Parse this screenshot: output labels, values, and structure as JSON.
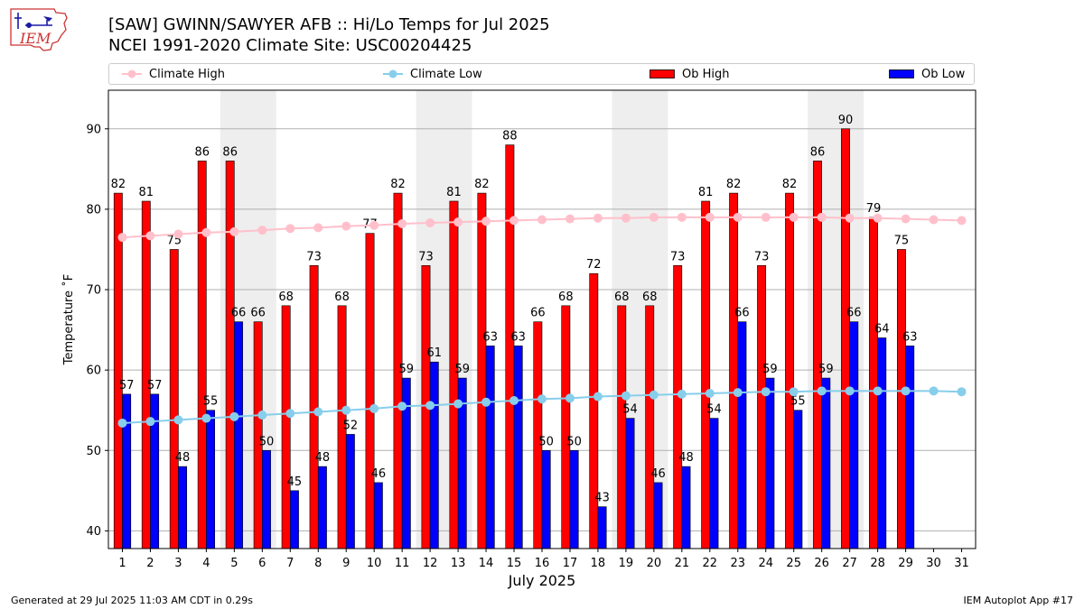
{
  "header": {
    "logo_text": "IEM",
    "title_line1": "[SAW] GWINN/SAWYER AFB :: Hi/Lo Temps for Jul 2025",
    "title_line2": "NCEI 1991-2020 Climate Site: USC00204425"
  },
  "legend": {
    "climate_high": "Climate High",
    "climate_low": "Climate Low",
    "ob_high": "Ob High",
    "ob_low": "Ob Low"
  },
  "footer": {
    "generated": "Generated at 29 Jul 2025 11:03 AM CDT in 0.29s",
    "app": "IEM Autoplot App #17"
  },
  "colors": {
    "ob_high": "#ff0000",
    "ob_low": "#0000ff",
    "climate_high": "#ffc0cb",
    "climate_low": "#87ceeb",
    "weekend_band": "#eeeeee",
    "grid": "#b0b0b0"
  },
  "chart_data": {
    "type": "bar",
    "xlabel": "July 2025",
    "ylabel": "Temperature ˚F",
    "ylim": [
      37.8,
      94.8
    ],
    "yticks": [
      40,
      50,
      60,
      70,
      80,
      90
    ],
    "grid": "horizontal",
    "legend_position": "top",
    "categories": [
      "1",
      "2",
      "3",
      "4",
      "5",
      "6",
      "7",
      "8",
      "9",
      "10",
      "11",
      "12",
      "13",
      "14",
      "15",
      "16",
      "17",
      "18",
      "19",
      "20",
      "21",
      "22",
      "23",
      "24",
      "25",
      "26",
      "27",
      "28",
      "29",
      "30",
      "31"
    ],
    "shaded_days": [
      [
        5,
        6
      ],
      [
        12,
        13
      ],
      [
        19,
        20
      ],
      [
        26,
        27
      ]
    ],
    "series": [
      {
        "name": "Ob High",
        "kind": "bar",
        "values": [
          82,
          81,
          75,
          86,
          86,
          66,
          68,
          73,
          68,
          77,
          82,
          73,
          81,
          82,
          88,
          66,
          68,
          72,
          68,
          68,
          73,
          81,
          82,
          73,
          82,
          86,
          90,
          79,
          75,
          null,
          null
        ]
      },
      {
        "name": "Ob Low",
        "kind": "bar",
        "values": [
          57,
          57,
          48,
          55,
          66,
          50,
          45,
          48,
          52,
          46,
          59,
          61,
          59,
          63,
          63,
          50,
          50,
          43,
          54,
          46,
          48,
          54,
          66,
          59,
          55,
          59,
          66,
          64,
          63,
          null,
          null
        ]
      },
      {
        "name": "Climate High",
        "kind": "line",
        "values": [
          76.5,
          76.7,
          76.9,
          77.1,
          77.2,
          77.4,
          77.6,
          77.7,
          77.9,
          78.0,
          78.2,
          78.3,
          78.4,
          78.5,
          78.6,
          78.7,
          78.8,
          78.9,
          78.9,
          79.0,
          79.0,
          79.0,
          79.0,
          79.0,
          79.0,
          79.0,
          78.9,
          78.9,
          78.8,
          78.7,
          78.6
        ]
      },
      {
        "name": "Climate Low",
        "kind": "line",
        "values": [
          53.4,
          53.6,
          53.8,
          54.0,
          54.2,
          54.4,
          54.6,
          54.8,
          55.0,
          55.2,
          55.5,
          55.6,
          55.8,
          56.0,
          56.2,
          56.4,
          56.5,
          56.7,
          56.8,
          56.9,
          57.0,
          57.1,
          57.2,
          57.3,
          57.3,
          57.4,
          57.4,
          57.4,
          57.4,
          57.4,
          57.3
        ]
      }
    ]
  }
}
